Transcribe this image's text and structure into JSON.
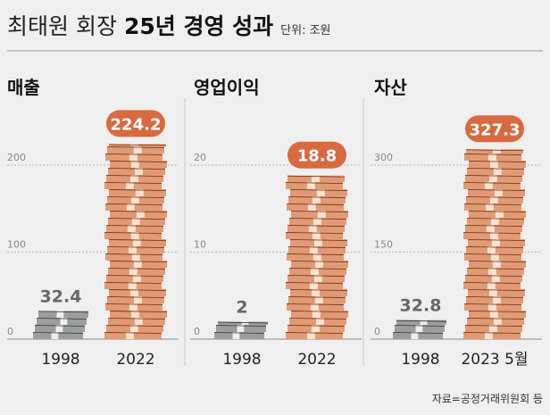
{
  "title": {
    "light": "최태원 회장",
    "bold": "25년 경영 성과",
    "unit": "단위: 조원"
  },
  "source": "자료=공정거래위원회 등",
  "colors": {
    "highlight": "#d9693f",
    "bill": "#e29a74",
    "bill_band": "#fbe2cf",
    "bill_line": "#6a2c18",
    "gray_bill": "#9c9e9e",
    "gray_band": "#eeeeee"
  },
  "chart_data": [
    {
      "type": "bar",
      "title": "매출",
      "categories": [
        "1998",
        "2022"
      ],
      "values": [
        32.4,
        224.2
      ],
      "value_labels": [
        "32.4",
        "224.2"
      ],
      "ticks": [
        0,
        100,
        200
      ],
      "tick_labels": [
        "0",
        "100",
        "200"
      ],
      "ylim": [
        0,
        200
      ],
      "ylabel": "조원",
      "grid": true
    },
    {
      "type": "bar",
      "title": "영업이익",
      "categories": [
        "1998",
        "2022"
      ],
      "values": [
        2,
        18.8
      ],
      "value_labels": [
        "2",
        "18.8"
      ],
      "ticks": [
        0,
        10,
        20
      ],
      "tick_labels": [
        "0",
        "10",
        "20"
      ],
      "ylim": [
        0,
        20
      ],
      "ylabel": "조원",
      "grid": true
    },
    {
      "type": "bar",
      "title": "자산",
      "categories": [
        "1998",
        "2023 5월"
      ],
      "values": [
        32.8,
        327.3
      ],
      "value_labels": [
        "32.8",
        "327.3"
      ],
      "ticks": [
        0,
        150,
        300
      ],
      "tick_labels": [
        "0",
        "150",
        "300"
      ],
      "ylim": [
        0,
        300
      ],
      "ylabel": "조원",
      "grid": true
    }
  ]
}
